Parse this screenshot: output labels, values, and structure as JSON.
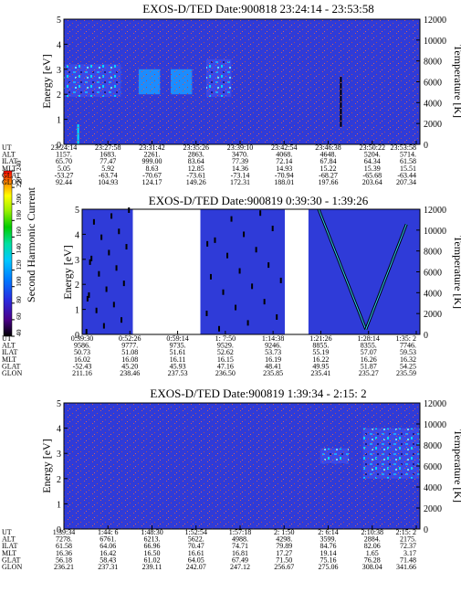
{
  "panels": [
    {
      "title": "EXOS-D/TED   Date:900818  23:24:14 - 23:53:58",
      "ylabel": "Energy [eV]",
      "y2label": "Temperature [K]",
      "yticks": [
        "0",
        "1",
        "2",
        "3",
        "4",
        "5"
      ],
      "y2ticks": [
        "0",
        "2000",
        "4000",
        "6000",
        "8000",
        "10000",
        "12000"
      ],
      "row_labels": [
        "UT",
        "ALT",
        "ILAT",
        "MLT",
        "GLAT",
        "GLON"
      ],
      "columns": [
        [
          "23:24:14",
          "1157.",
          "65.70",
          "5.05",
          "-53.27",
          "92.44"
        ],
        [
          "23:27:58",
          "1683.",
          "77.47",
          "5.92",
          "-63.74",
          "104.93"
        ],
        [
          "23:31:42",
          "2261.",
          "999.00",
          "8.63",
          "-70.67",
          "124.17"
        ],
        [
          "23:35:26",
          "2863.",
          "83.64",
          "12.85",
          "-73.61",
          "149.26"
        ],
        [
          "23:39:10",
          "3470.",
          "77.39",
          "14.36",
          "-73.14",
          "172.31"
        ],
        [
          "23:42:54",
          "4068.",
          "72.14",
          "14.93",
          "-70.94",
          "188.01"
        ],
        [
          "23:46:38",
          "4648.",
          "67.84",
          "15.22",
          "-68.27",
          "197.66"
        ],
        [
          "23:50:22",
          "5204.",
          "64.34",
          "15.39",
          "-65.68",
          "203.64"
        ],
        [
          "23:53:58",
          "5714.",
          "61.58",
          "15.51",
          "-63.44",
          "207.34"
        ]
      ]
    },
    {
      "title": "EXOS-D/TED   Date:900819   0:39:30 - 1:39:26",
      "ylabel": "Energy [eV]",
      "y2label": "Temperature [K]",
      "yticks": [
        "0",
        "1",
        "2",
        "3",
        "4",
        "5"
      ],
      "y2ticks": [
        "0",
        "2000",
        "4000",
        "6000",
        "8000",
        "10000",
        "12000"
      ],
      "row_labels": [
        "UT",
        "ALT",
        "ILAT",
        "MLT",
        "GLAT",
        "GLON"
      ],
      "columns": [
        [
          "0:39:30",
          "9586.",
          "50.73",
          "16.02",
          "-52.43",
          "211.16"
        ],
        [
          "0:52:26",
          "9777.",
          "51.08",
          "16.08",
          "45.20",
          "238.46"
        ],
        [
          "0:59:14",
          "9735.",
          "51.61",
          "16.11",
          "45.93",
          "237.53"
        ],
        [
          "1: 7:50",
          "9529.",
          "52.62",
          "16.15",
          "47.16",
          "236.50"
        ],
        [
          "1:14:38",
          "9246.",
          "53.73",
          "16.19",
          "48.41",
          "235.85"
        ],
        [
          "1:21:26",
          "8855.",
          "55.19",
          "16.22",
          "49.95",
          "235.41"
        ],
        [
          "1:28:14",
          "8355.",
          "57.07",
          "16.26",
          "51.87",
          "235.27"
        ],
        [
          "1:35: 2",
          "7746.",
          "59.53",
          "16.32",
          "54.25",
          "235.59"
        ]
      ]
    },
    {
      "title": "EXOS-D/TED   Date:900819   1:39:34 - 2:15: 2",
      "ylabel": "Energy [eV]",
      "y2label": "Temperature [K]",
      "yticks": [
        "0",
        "1",
        "2",
        "3",
        "4",
        "5"
      ],
      "y2ticks": [
        "0",
        "2000",
        "4000",
        "6000",
        "8000",
        "10000",
        "12000"
      ],
      "row_labels": [
        "UT",
        "ALT",
        "ILAT",
        "MLT",
        "GLAT",
        "GLON"
      ],
      "columns": [
        [
          "1:39:34",
          "7278.",
          "61.58",
          "16.36",
          "56.18",
          "236.21"
        ],
        [
          "1:44: 6",
          "6761.",
          "64.06",
          "16.42",
          "58.43",
          "237.31"
        ],
        [
          "1:48:30",
          "6213.",
          "66.96",
          "16.50",
          "61.02",
          "239.11"
        ],
        [
          "1:52:54",
          "5622.",
          "70.47",
          "16.61",
          "64.05",
          "242.07"
        ],
        [
          "1:57:18",
          "4988.",
          "74.71",
          "16.81",
          "67.49",
          "247.12"
        ],
        [
          "2: 1:50",
          "4298.",
          "79.89",
          "17.27",
          "71.50",
          "256.67"
        ],
        [
          "2: 6:14",
          "3599.",
          "84.76",
          "19.14",
          "75.16",
          "275.06"
        ],
        [
          "2:10:38",
          "2884.",
          "82.06",
          "1.65",
          "76.28",
          "308.04"
        ],
        [
          "2:15: 2",
          "2175.",
          "72.37",
          "3.17",
          "71.48",
          "341.66"
        ]
      ]
    }
  ],
  "colorbar": {
    "label": "Second Harmonic Current",
    "ticks": [
      "40",
      "60",
      "80",
      "100",
      "120",
      "140",
      "160",
      "180",
      "200",
      "220",
      "240"
    ]
  },
  "chart_data": [
    {
      "type": "heatmap",
      "title": "EXOS-D/TED   Date:900818  23:24:14 - 23:53:58",
      "xlabel": "",
      "ylabel": "Energy [eV]",
      "y2label": "Temperature [K]",
      "ylim": [
        0,
        5
      ],
      "y2lim": [
        0,
        12000
      ],
      "x": [
        "23:24:14",
        "23:27:58",
        "23:31:42",
        "23:35:26",
        "23:39:10",
        "23:42:54",
        "23:46:38",
        "23:50:22",
        "23:53:58"
      ],
      "background_value": 60,
      "regions": [
        {
          "t0": 0.0,
          "t1": 0.16,
          "e0": 1.9,
          "e1": 3.2,
          "value": 150
        },
        {
          "t0": 0.21,
          "t1": 0.27,
          "e0": 2.0,
          "e1": 3.0,
          "value": 130
        },
        {
          "t0": 0.3,
          "t1": 0.36,
          "e0": 2.0,
          "e1": 3.0,
          "value": 120
        },
        {
          "t0": 0.4,
          "t1": 0.47,
          "e0": 1.9,
          "e1": 3.4,
          "value": 150
        }
      ],
      "spikes": [
        {
          "t": 0.04,
          "e0": 0.0,
          "e1": 0.8,
          "value": 180
        },
        {
          "t": 0.778,
          "e0": 0.7,
          "e1": 2.7,
          "value": 30
        }
      ]
    },
    {
      "type": "heatmap",
      "title": "EXOS-D/TED   Date:900819   0:39:30 - 1:39:26",
      "xlabel": "",
      "ylabel": "Energy [eV]",
      "y2label": "Temperature [K]",
      "ylim": [
        0,
        5
      ],
      "y2lim": [
        0,
        12000
      ],
      "x": [
        "0:39:30",
        "0:52:26",
        "0:59:14",
        "1: 7:50",
        "1:14:38",
        "1:21:26",
        "1:28:14",
        "1:35: 2"
      ],
      "background_value": 60,
      "regions": [
        {
          "t0": 0.0,
          "t1": 0.15,
          "e0": 0,
          "e1": 5,
          "value": 60
        },
        {
          "t0": 0.35,
          "t1": 0.6,
          "e0": 0,
          "e1": 5,
          "value": 60
        },
        {
          "t0": 0.67,
          "t1": 1.0,
          "e0": 0,
          "e1": 5,
          "value": 60
        }
      ],
      "gaps": [
        [
          0.15,
          0.35
        ],
        [
          0.6,
          0.67
        ]
      ],
      "traces": [
        {
          "t0": 0.7,
          "e0": 5.0,
          "t1": 0.84,
          "e1": 0.2,
          "value": 100
        },
        {
          "t0": 0.84,
          "e0": 0.2,
          "t1": 0.96,
          "e1": 4.4,
          "value": 100
        }
      ]
    },
    {
      "type": "heatmap",
      "title": "EXOS-D/TED   Date:900819   1:39:34 - 2:15: 2",
      "xlabel": "",
      "ylabel": "Energy [eV]",
      "y2label": "Temperature [K]",
      "ylim": [
        0,
        5
      ],
      "y2lim": [
        0,
        12000
      ],
      "x": [
        "1:39:34",
        "1:44: 6",
        "1:48:30",
        "1:52:54",
        "1:57:18",
        "2: 1:50",
        "2: 6:14",
        "2:10:38",
        "2:15: 2"
      ],
      "background_value": 60,
      "regions": [
        {
          "t0": 0.72,
          "t1": 0.8,
          "e0": 2.6,
          "e1": 3.2,
          "value": 140
        },
        {
          "t0": 0.84,
          "t1": 1.0,
          "e0": 2.0,
          "e1": 4.0,
          "value": 160
        }
      ]
    }
  ]
}
